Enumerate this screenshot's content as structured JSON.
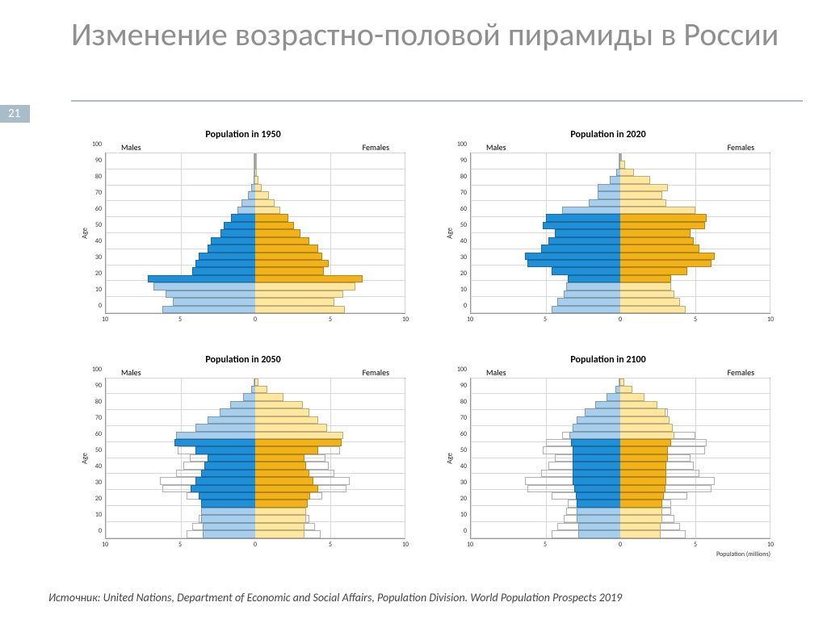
{
  "page_number": "21",
  "title": "Изменение возрастно-половой пирамиды в России",
  "source": "Источник: United Nations, Department of Economic and Social Affairs, Population Division. World Population Prospects 2019",
  "axis": {
    "ylabel": "Age",
    "xlabel_last": "Population (millions)",
    "xlim": [
      -10,
      10
    ],
    "xticks": [
      -10,
      -5,
      0,
      5,
      10
    ],
    "xtick_labels": [
      "10",
      "5",
      "0",
      "5",
      "10"
    ],
    "yticks": [
      0,
      10,
      20,
      30,
      40,
      50,
      60,
      70,
      80,
      90,
      100
    ],
    "ymax_display": 100,
    "grid_color": "#d8d8d8",
    "border_color": "#9a9a9a"
  },
  "labels": {
    "males": "Males",
    "females": "Females"
  },
  "colors": {
    "male_light": "#a7cfed",
    "male_dark": "#1f8fd8",
    "female_light": "#ffe7a0",
    "female_dark": "#f2b21a",
    "outline": "#b0b0b0"
  },
  "num_bins": 21,
  "working_age_range": [
    4,
    12
  ],
  "panels": [
    {
      "title": "Population in 1950",
      "males": [
        6.2,
        5.5,
        6.0,
        6.8,
        7.2,
        4.2,
        4.0,
        3.8,
        3.2,
        3.0,
        2.3,
        2.1,
        1.6,
        1.2,
        0.9,
        0.5,
        0.25,
        0.12,
        0.05,
        0.02,
        0.01
      ],
      "females": [
        6.0,
        5.3,
        5.9,
        6.7,
        7.2,
        4.6,
        4.9,
        4.5,
        4.2,
        3.6,
        3.0,
        2.6,
        2.2,
        1.7,
        1.3,
        0.9,
        0.45,
        0.22,
        0.1,
        0.04,
        0.02
      ],
      "outline_males": [
        6.2,
        5.5,
        6.0,
        6.8,
        7.2,
        4.2,
        4.0,
        3.8,
        3.2,
        3.0,
        2.3,
        2.1,
        1.6,
        1.2,
        0.9,
        0.5,
        0.25,
        0.12,
        0.05,
        0.02,
        0.01
      ],
      "outline_females": [
        6.0,
        5.3,
        5.9,
        6.7,
        7.2,
        4.6,
        4.9,
        4.5,
        4.2,
        3.6,
        3.0,
        2.6,
        2.2,
        1.7,
        1.3,
        0.9,
        0.45,
        0.22,
        0.1,
        0.04,
        0.02
      ]
    },
    {
      "title": "Population in 2020",
      "males": [
        4.6,
        4.2,
        3.8,
        3.6,
        3.5,
        4.6,
        6.2,
        6.4,
        5.3,
        4.8,
        4.4,
        5.2,
        5.0,
        3.9,
        2.1,
        1.5,
        1.5,
        0.7,
        0.25,
        0.08,
        0.02
      ],
      "females": [
        4.4,
        4.0,
        3.6,
        3.4,
        3.4,
        4.5,
        6.1,
        6.3,
        5.3,
        4.9,
        4.7,
        5.7,
        5.8,
        5.0,
        3.1,
        2.8,
        3.2,
        2.0,
        0.9,
        0.3,
        0.08
      ],
      "outline_males": [
        4.6,
        4.2,
        3.8,
        3.6,
        3.5,
        4.6,
        6.2,
        6.4,
        5.3,
        4.8,
        4.4,
        5.2,
        5.0,
        3.9,
        2.1,
        1.5,
        1.5,
        0.7,
        0.25,
        0.08,
        0.02
      ],
      "outline_females": [
        4.4,
        4.0,
        3.6,
        3.4,
        3.4,
        4.5,
        6.1,
        6.3,
        5.3,
        4.9,
        4.7,
        5.7,
        5.8,
        5.0,
        3.1,
        2.8,
        3.2,
        2.0,
        0.9,
        0.3,
        0.08
      ]
    },
    {
      "title": "Population in 2050",
      "males": [
        3.5,
        3.5,
        3.6,
        3.6,
        3.6,
        3.8,
        4.3,
        4.0,
        3.6,
        3.4,
        3.2,
        4.0,
        5.4,
        5.3,
        4.0,
        3.2,
        2.4,
        1.7,
        0.8,
        0.25,
        0.05
      ],
      "females": [
        3.3,
        3.3,
        3.4,
        3.4,
        3.5,
        3.7,
        4.2,
        3.9,
        3.6,
        3.4,
        3.3,
        4.2,
        5.8,
        5.9,
        4.8,
        4.2,
        3.6,
        3.2,
        1.9,
        0.8,
        0.2
      ],
      "outline_males": [
        4.6,
        4.2,
        3.8,
        3.6,
        3.5,
        4.6,
        6.2,
        6.4,
        5.3,
        4.8,
        4.4,
        5.2,
        5.0,
        3.9,
        2.1,
        1.5,
        1.5,
        0.7,
        0.25,
        0.08,
        0.02
      ],
      "outline_females": [
        4.4,
        4.0,
        3.6,
        3.4,
        3.4,
        4.5,
        6.1,
        6.3,
        5.3,
        4.9,
        4.7,
        5.7,
        5.8,
        5.0,
        3.1,
        2.8,
        3.2,
        2.0,
        0.9,
        0.3,
        0.08
      ]
    },
    {
      "title": "Population in 2100",
      "males": [
        2.8,
        2.8,
        2.9,
        2.9,
        2.9,
        3.0,
        3.1,
        3.2,
        3.2,
        3.2,
        3.2,
        3.2,
        3.3,
        3.4,
        3.2,
        2.9,
        2.4,
        1.7,
        0.9,
        0.35,
        0.08
      ],
      "females": [
        2.7,
        2.7,
        2.8,
        2.8,
        2.8,
        2.9,
        3.0,
        3.1,
        3.1,
        3.1,
        3.2,
        3.2,
        3.4,
        3.6,
        3.5,
        3.3,
        3.0,
        2.5,
        1.6,
        0.8,
        0.25
      ],
      "outline_males": [
        4.6,
        4.2,
        3.8,
        3.6,
        3.5,
        4.6,
        6.2,
        6.4,
        5.3,
        4.8,
        4.4,
        5.2,
        5.0,
        3.9,
        2.1,
        1.5,
        1.5,
        0.7,
        0.25,
        0.08,
        0.02
      ],
      "outline_females": [
        4.4,
        4.0,
        3.6,
        3.4,
        3.4,
        4.5,
        6.1,
        6.3,
        5.3,
        4.9,
        4.7,
        5.7,
        5.8,
        5.0,
        3.1,
        2.8,
        3.2,
        2.0,
        0.9,
        0.3,
        0.08
      ]
    }
  ]
}
